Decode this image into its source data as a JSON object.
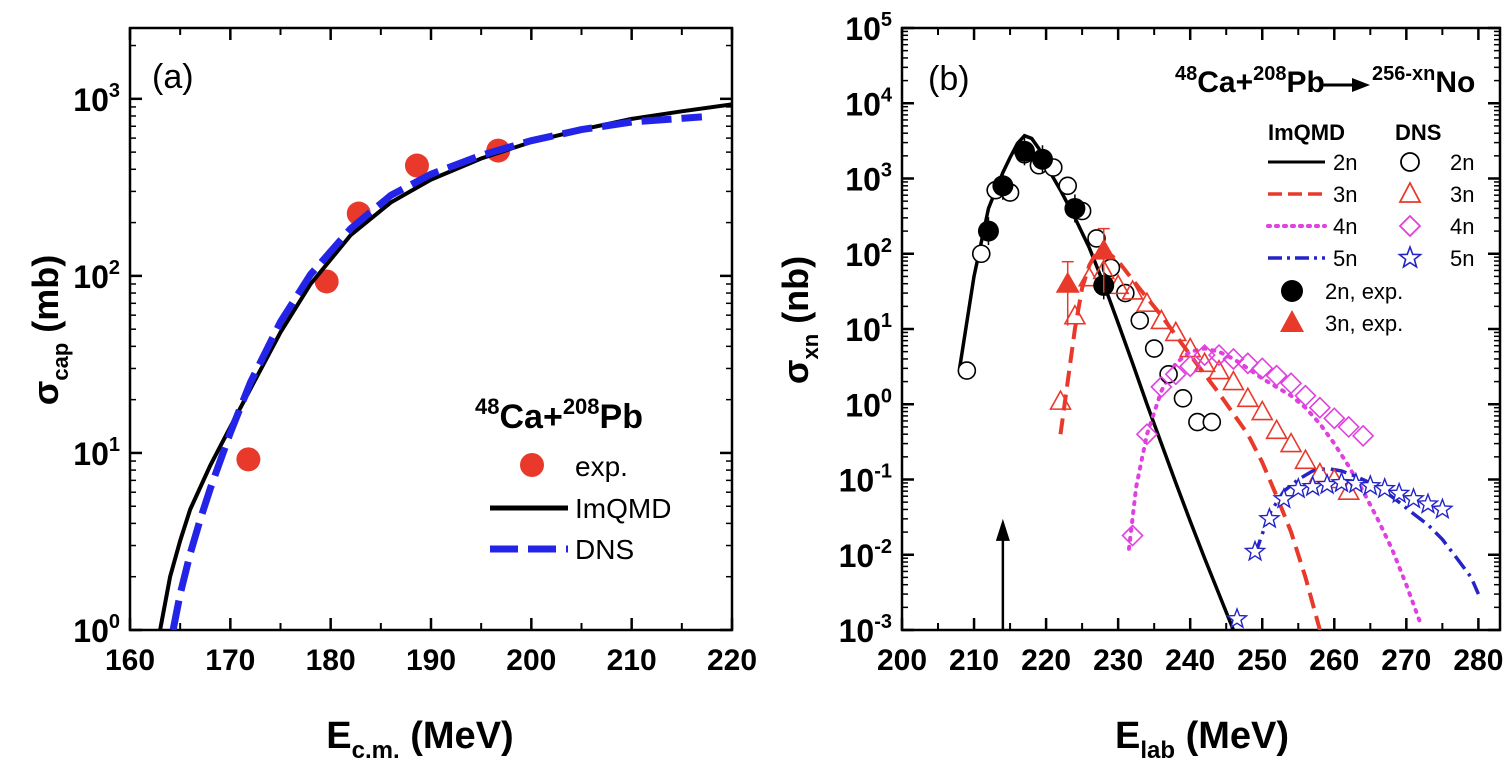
{
  "chart_data": [
    {
      "type": "line",
      "panel_label": "(a)",
      "xlabel": "E",
      "xlabel_sub": "c.m.",
      "xlabel_unit": " (MeV)",
      "ylabel": "σ",
      "ylabel_sub": "cap",
      "ylabel_unit": " (mb)",
      "xlim": [
        160,
        220
      ],
      "ylim_log10": [
        0,
        3.4
      ],
      "yscale": "log",
      "x_ticks": [
        160,
        170,
        180,
        190,
        200,
        210,
        220
      ],
      "y_ticks": [
        {
          "exp": 0,
          "label": "10",
          "sup": "0"
        },
        {
          "exp": 1,
          "label": "10",
          "sup": "1"
        },
        {
          "exp": 2,
          "label": "10",
          "sup": "2"
        },
        {
          "exp": 3,
          "label": "10",
          "sup": "3"
        }
      ],
      "reaction": {
        "sup1": "48",
        "el1": "Ca+",
        "sup2": "208",
        "el2": "Pb"
      },
      "legend": [
        {
          "key": "exp",
          "label": "exp."
        },
        {
          "key": "imqmd",
          "label": "ImQMD"
        },
        {
          "key": "dns",
          "label": "DNS"
        }
      ],
      "series": [
        {
          "name": "exp.",
          "style": "circle",
          "color": "#e8392a",
          "x": [
            171.8,
            179.6,
            182.8,
            188.6,
            196.7
          ],
          "y": [
            9.2,
            93,
            225,
            420,
            510
          ]
        },
        {
          "name": "ImQMD",
          "style": "solid",
          "color": "#000000",
          "x": [
            163,
            164,
            165,
            166,
            168,
            170,
            172,
            175,
            178,
            182,
            186,
            190,
            195,
            200,
            205,
            210,
            215,
            220
          ],
          "y": [
            1.0,
            2.0,
            3.2,
            4.8,
            8.5,
            14,
            23,
            48,
            90,
            170,
            260,
            350,
            460,
            570,
            670,
            770,
            850,
            930
          ]
        },
        {
          "name": "DNS",
          "style": "dashed",
          "color": "#2424e8",
          "x": [
            164.3,
            165,
            166,
            167,
            168,
            170,
            172,
            175,
            178,
            182,
            186,
            190,
            195,
            200,
            205,
            210,
            217
          ],
          "y": [
            1.0,
            1.6,
            2.7,
            4.2,
            6.3,
            13,
            25,
            55,
            102,
            185,
            285,
            375,
            480,
            580,
            670,
            740,
            790
          ]
        }
      ]
    },
    {
      "type": "scatter",
      "panel_label": "(b)",
      "xlabel": "E",
      "xlabel_sub": "lab",
      "xlabel_unit": " (MeV)",
      "ylabel": "σ",
      "ylabel_sub": "xn",
      "ylabel_unit": " (nb)",
      "xlim": [
        200,
        283
      ],
      "ylim_log10": [
        -3,
        5
      ],
      "yscale": "log",
      "x_ticks": [
        200,
        210,
        220,
        230,
        240,
        250,
        260,
        270,
        280
      ],
      "y_ticks": [
        {
          "exp": -3,
          "label": "10",
          "sup": "-3"
        },
        {
          "exp": -2,
          "label": "10",
          "sup": "-2"
        },
        {
          "exp": -1,
          "label": "10",
          "sup": "-1"
        },
        {
          "exp": 0,
          "label": "10",
          "sup": "0"
        },
        {
          "exp": 1,
          "label": "10",
          "sup": "1"
        },
        {
          "exp": 2,
          "label": "10",
          "sup": "2"
        },
        {
          "exp": 3,
          "label": "10",
          "sup": "3"
        },
        {
          "exp": 4,
          "label": "10",
          "sup": "4"
        },
        {
          "exp": 5,
          "label": "10",
          "sup": "5"
        }
      ],
      "reaction": {
        "sup1": "48",
        "el1": "Ca+",
        "sup2": "208",
        "el2": "Pb",
        "sup3": "256-xn",
        "el3": "No"
      },
      "legend_headers": {
        "left": "ImQMD",
        "right": "DNS"
      },
      "legend": [
        {
          "key": "l2n",
          "label": "2n"
        },
        {
          "key": "l3n",
          "label": "3n"
        },
        {
          "key": "l4n",
          "label": "4n"
        },
        {
          "key": "l5n",
          "label": "5n"
        },
        {
          "key": "d2n",
          "label": "2n"
        },
        {
          "key": "d3n",
          "label": "3n"
        },
        {
          "key": "d4n",
          "label": "4n"
        },
        {
          "key": "d5n",
          "label": "5n"
        },
        {
          "key": "e2n",
          "label": "2n, exp."
        },
        {
          "key": "e3n",
          "label": "3n, exp."
        }
      ],
      "arrow_x": 214,
      "lines": [
        {
          "name": "ImQMD 2n",
          "style": "solid",
          "color": "#000000",
          "x": [
            208,
            210,
            212,
            214,
            215,
            216,
            217,
            218,
            219,
            220,
            222,
            224,
            226,
            228,
            230,
            232,
            234,
            236,
            238,
            240,
            242,
            244,
            246
          ],
          "y": [
            3,
            50,
            400,
            1200,
            1900,
            2900,
            3700,
            3400,
            2500,
            1500,
            700,
            300,
            120,
            40,
            12,
            3.5,
            1,
            0.3,
            0.09,
            0.028,
            0.009,
            0.003,
            0.001
          ]
        },
        {
          "name": "ImQMD 3n",
          "style": "dashed",
          "color": "#e8392a",
          "x": [
            222,
            223,
            224,
            225,
            226,
            227,
            228,
            230,
            232,
            236,
            240,
            244,
            248,
            250,
            252,
            254,
            256,
            258
          ],
          "y": [
            0.4,
            2,
            10,
            35,
            70,
            105,
            115,
            80,
            45,
            15,
            4.5,
            1.4,
            0.4,
            0.17,
            0.06,
            0.02,
            0.005,
            0.001
          ]
        },
        {
          "name": "ImQMD 4n",
          "style": "dotted",
          "color": "#e040e0",
          "x": [
            231.5,
            232.5,
            234,
            236,
            238,
            240,
            242,
            244,
            246,
            248,
            250,
            254,
            256,
            258,
            260,
            262,
            264,
            266,
            268,
            270,
            272
          ],
          "y": [
            0.012,
            0.08,
            0.4,
            1.5,
            3.5,
            5,
            5.5,
            5,
            4,
            3,
            2.2,
            1.3,
            0.9,
            0.55,
            0.3,
            0.15,
            0.07,
            0.03,
            0.012,
            0.004,
            0.0012
          ]
        },
        {
          "name": "ImQMD 5n",
          "style": "dashdot",
          "color": "#2424c8",
          "x": [
            249,
            251,
            253,
            255,
            257,
            259,
            261,
            263,
            265,
            267,
            269,
            271,
            273,
            275,
            277,
            279,
            280
          ],
          "y": [
            0.01,
            0.035,
            0.07,
            0.1,
            0.13,
            0.14,
            0.13,
            0.11,
            0.09,
            0.07,
            0.05,
            0.035,
            0.025,
            0.016,
            0.009,
            0.005,
            0.003
          ]
        }
      ],
      "markers": [
        {
          "name": "DNS 2n",
          "style": "open-circle",
          "color": "#000000",
          "x": [
            209,
            211,
            213,
            215,
            217,
            219,
            221,
            223,
            225,
            227,
            229,
            231,
            233,
            235,
            237,
            239,
            241,
            243
          ],
          "y": [
            2.8,
            100,
            700,
            650,
            2100,
            1500,
            1400,
            800,
            370,
            160,
            65,
            30,
            13,
            5.5,
            2.5,
            1.2,
            0.58,
            0.58
          ]
        },
        {
          "name": "DNS 3n",
          "style": "open-triangle",
          "color": "#e8392a",
          "x": [
            222,
            224,
            226,
            228,
            230,
            232,
            234,
            236,
            238,
            240,
            242,
            244,
            246,
            248,
            250,
            252,
            254,
            256,
            258,
            260,
            262
          ],
          "y": [
            1.1,
            15,
            48,
            60,
            38,
            32,
            22,
            13,
            9,
            5.5,
            3.5,
            2.8,
            2.0,
            1.2,
            0.8,
            0.45,
            0.3,
            0.18,
            0.12,
            0.1,
            0.07
          ]
        },
        {
          "name": "DNS 4n",
          "style": "open-diamond",
          "color": "#e040e0",
          "x": [
            232,
            234,
            236,
            238,
            240,
            242,
            244,
            246,
            248,
            250,
            252,
            254,
            256,
            258,
            260,
            262,
            264
          ],
          "y": [
            0.018,
            0.4,
            1.7,
            2.5,
            3.2,
            4.5,
            4.5,
            4.0,
            3.5,
            3.0,
            2.4,
            1.9,
            1.3,
            0.9,
            0.65,
            0.5,
            0.38
          ]
        },
        {
          "name": "DNS 5n",
          "style": "open-star",
          "color": "#2424c8",
          "x": [
            246.5,
            249,
            251,
            253,
            255,
            257,
            259,
            261,
            263,
            265,
            267,
            269,
            271,
            273,
            275
          ],
          "y": [
            0.0014,
            0.011,
            0.03,
            0.055,
            0.075,
            0.08,
            0.085,
            0.09,
            0.088,
            0.082,
            0.075,
            0.065,
            0.055,
            0.047,
            0.04
          ]
        },
        {
          "name": "2n, exp.",
          "style": "filled-circle",
          "color": "#000000",
          "x": [
            212,
            214,
            217,
            219.5,
            224,
            228
          ],
          "y": [
            200,
            800,
            2300,
            1800,
            400,
            38
          ]
        },
        {
          "name": "3n, exp.",
          "style": "filled-triangle",
          "color": "#e8392a",
          "x": [
            223,
            228
          ],
          "y": [
            40,
            110
          ]
        }
      ]
    }
  ]
}
